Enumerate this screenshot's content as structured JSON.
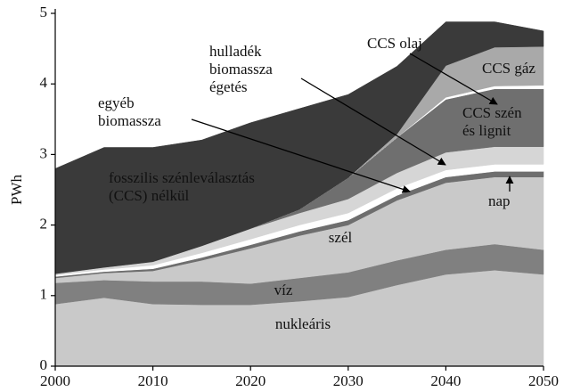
{
  "chart_data": {
    "type": "stacked_area",
    "y_label": "PWh",
    "x": [
      2000,
      2005,
      2010,
      2015,
      2020,
      2025,
      2030,
      2035,
      2040,
      2045,
      2050
    ],
    "xlim": [
      2000,
      2050
    ],
    "xticks": [
      2000,
      2010,
      2020,
      2030,
      2040,
      2050
    ],
    "ylim": [
      0,
      5
    ],
    "yticks": [
      0,
      1,
      2,
      3,
      4,
      5
    ],
    "series": [
      {
        "name": "nukleáris",
        "color": "#c9c9c9",
        "values": [
          0.88,
          0.97,
          0.88,
          0.87,
          0.87,
          0.92,
          0.98,
          1.15,
          1.3,
          1.36,
          1.3
        ]
      },
      {
        "name": "víz",
        "color": "#808080",
        "values": [
          0.3,
          0.25,
          0.32,
          0.33,
          0.3,
          0.33,
          0.35,
          0.35,
          0.35,
          0.37,
          0.35
        ]
      },
      {
        "name": "szél",
        "color": "#c9c9c9",
        "values": [
          0.07,
          0.1,
          0.15,
          0.3,
          0.5,
          0.6,
          0.67,
          0.85,
          0.95,
          0.95,
          1.03
        ]
      },
      {
        "name": "egyéb\nbiomassza",
        "color": "#6e6e6e",
        "values": [
          0.02,
          0.02,
          0.03,
          0.04,
          0.05,
          0.06,
          0.07,
          0.07,
          0.08,
          0.08,
          0.08
        ]
      },
      {
        "name": "nap",
        "color": "#ffffff",
        "values": [
          0.02,
          0.03,
          0.05,
          0.065,
          0.08,
          0.09,
          0.1,
          0.1,
          0.1,
          0.1,
          0.1
        ]
      },
      {
        "name": "hulladék\nbiomassza\négetés",
        "color": "#d6d6d6",
        "values": [
          0.02,
          0.03,
          0.05,
          0.1,
          0.15,
          0.17,
          0.2,
          0.22,
          0.25,
          0.25,
          0.25
        ]
      },
      {
        "name": "CCS szén\nés lignit",
        "color": "#6f6f6f",
        "values": [
          0,
          0,
          0,
          0,
          0,
          0.05,
          0.3,
          0.5,
          0.75,
          0.82,
          0.82
        ]
      },
      {
        "name": "CCS olaj",
        "color": "#ffffff",
        "values": [
          0,
          0,
          0,
          0,
          0,
          0,
          0,
          0,
          0.03,
          0.04,
          0.05
        ]
      },
      {
        "name": "CCS gáz",
        "color": "#a9a9a9",
        "values": [
          0,
          0,
          0,
          0,
          0,
          0,
          0,
          0.05,
          0.45,
          0.55,
          0.55
        ]
      },
      {
        "name": "fosszilis szénleválasztás\n(CCS) nélkül",
        "color": "#3a3a3a",
        "values": [
          1.49,
          1.7,
          1.62,
          1.5,
          1.5,
          1.43,
          1.18,
          0.96,
          0.62,
          0.36,
          0.22
        ]
      }
    ]
  }
}
